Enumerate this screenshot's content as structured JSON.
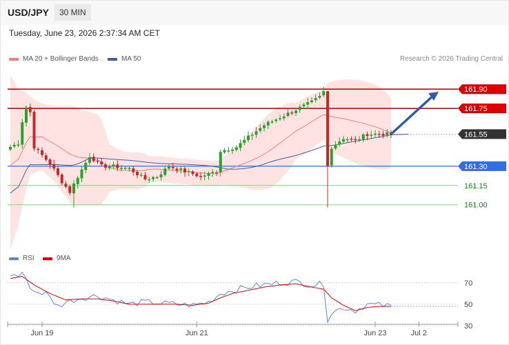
{
  "header": {
    "symbol": "USD/JPY",
    "timeframe": "30 MIN",
    "timestamp": "Tuesday, June 23, 2026 2:37:34 AM CET",
    "credit": "Research © 2026 Trading Central"
  },
  "legend": {
    "ma20": "MA 20 + Bollinger Bands",
    "ma50": "MA 50",
    "rsi": "RSI",
    "ma9": "9MA"
  },
  "colors": {
    "bull": "#2e9e2e",
    "bear": "#c62828",
    "ma20": "#f07e7e",
    "ma50": "#3f5e9c",
    "band": "#ffd7d7",
    "resistance": "#dd0000",
    "pivot": "#2f6fe0",
    "support": "#8cc98c",
    "last": "#333333",
    "rsi": "#5b86e0",
    "rsi_ma": "#e00000",
    "arrow": "#2e5ea8"
  },
  "chart_data": [
    {
      "type": "candlestick",
      "ylim": [
        160.66,
        162.1
      ],
      "levels": [
        {
          "label": "161.90",
          "value": 161.9,
          "kind": "resistance"
        },
        {
          "label": "161.75",
          "value": 161.75,
          "kind": "resistance"
        },
        {
          "label": "161.55",
          "value": 161.55,
          "kind": "last"
        },
        {
          "label": "161.30",
          "value": 161.3,
          "kind": "pivot"
        },
        {
          "label": "161.15",
          "value": 161.15,
          "kind": "support"
        },
        {
          "label": "161.00",
          "value": 161.0,
          "kind": "support"
        }
      ],
      "x_ticks": [
        {
          "label": "Jun 19",
          "index": 8
        },
        {
          "label": "Jun 21",
          "index": 47
        },
        {
          "label": "Jun 23",
          "index": 92
        },
        {
          "label": "Jul 2",
          "index": 103
        }
      ],
      "arrow": {
        "from": [
          96,
          161.55
        ],
        "to": [
          108,
          161.88
        ]
      },
      "anchors": [
        [
          0,
          161.45
        ],
        [
          2,
          161.48
        ],
        [
          3,
          161.65
        ],
        [
          4,
          161.76
        ],
        [
          5,
          161.72
        ],
        [
          6,
          161.45
        ],
        [
          10,
          161.32
        ],
        [
          13,
          161.18
        ],
        [
          15,
          161.1
        ],
        [
          17,
          161.22
        ],
        [
          20,
          161.38
        ],
        [
          23,
          161.3
        ],
        [
          26,
          161.3
        ],
        [
          30,
          161.28
        ],
        [
          34,
          161.2
        ],
        [
          37,
          161.22
        ],
        [
          40,
          161.3
        ],
        [
          44,
          161.26
        ],
        [
          48,
          161.22
        ],
        [
          52,
          161.26
        ],
        [
          53,
          161.42
        ],
        [
          57,
          161.45
        ],
        [
          61,
          161.55
        ],
        [
          64,
          161.62
        ],
        [
          68,
          161.68
        ],
        [
          72,
          161.74
        ],
        [
          76,
          161.8
        ],
        [
          78,
          161.84
        ],
        [
          79,
          161.88
        ],
        [
          80,
          161.3
        ],
        [
          81,
          161.45
        ],
        [
          84,
          161.52
        ],
        [
          87,
          161.5
        ],
        [
          90,
          161.55
        ],
        [
          93,
          161.55
        ],
        [
          96,
          161.55
        ]
      ],
      "n": 97
    },
    {
      "type": "line",
      "series": [
        {
          "name": "RSI"
        },
        {
          "name": "9MA"
        }
      ],
      "ylim": [
        28,
        86
      ],
      "y_ticks": [
        70,
        50,
        30
      ],
      "rsi_anchors": [
        [
          0,
          78
        ],
        [
          2,
          76
        ],
        [
          3,
          80
        ],
        [
          4,
          72
        ],
        [
          6,
          62
        ],
        [
          9,
          60
        ],
        [
          12,
          48
        ],
        [
          14,
          52
        ],
        [
          18,
          56
        ],
        [
          22,
          58
        ],
        [
          26,
          54
        ],
        [
          30,
          50
        ],
        [
          34,
          52
        ],
        [
          38,
          51
        ],
        [
          42,
          50
        ],
        [
          46,
          49
        ],
        [
          50,
          52
        ],
        [
          53,
          60
        ],
        [
          56,
          63
        ],
        [
          60,
          66
        ],
        [
          64,
          68
        ],
        [
          68,
          70
        ],
        [
          72,
          71
        ],
        [
          76,
          68
        ],
        [
          79,
          69
        ],
        [
          80,
          36
        ],
        [
          81,
          42
        ],
        [
          84,
          47
        ],
        [
          87,
          44
        ],
        [
          90,
          50
        ],
        [
          93,
          49
        ],
        [
          96,
          48
        ]
      ],
      "ma9_anchors": [
        [
          0,
          74
        ],
        [
          3,
          76
        ],
        [
          6,
          68
        ],
        [
          10,
          60
        ],
        [
          14,
          54
        ],
        [
          18,
          55
        ],
        [
          22,
          55
        ],
        [
          26,
          53
        ],
        [
          30,
          50
        ],
        [
          34,
          50
        ],
        [
          38,
          50
        ],
        [
          42,
          50
        ],
        [
          46,
          49
        ],
        [
          50,
          51
        ],
        [
          53,
          56
        ],
        [
          56,
          60
        ],
        [
          60,
          63
        ],
        [
          64,
          66
        ],
        [
          68,
          68
        ],
        [
          72,
          69
        ],
        [
          76,
          66
        ],
        [
          79,
          64
        ],
        [
          81,
          56
        ],
        [
          84,
          49
        ],
        [
          87,
          44
        ],
        [
          90,
          47
        ],
        [
          93,
          48
        ],
        [
          96,
          48
        ]
      ]
    }
  ]
}
